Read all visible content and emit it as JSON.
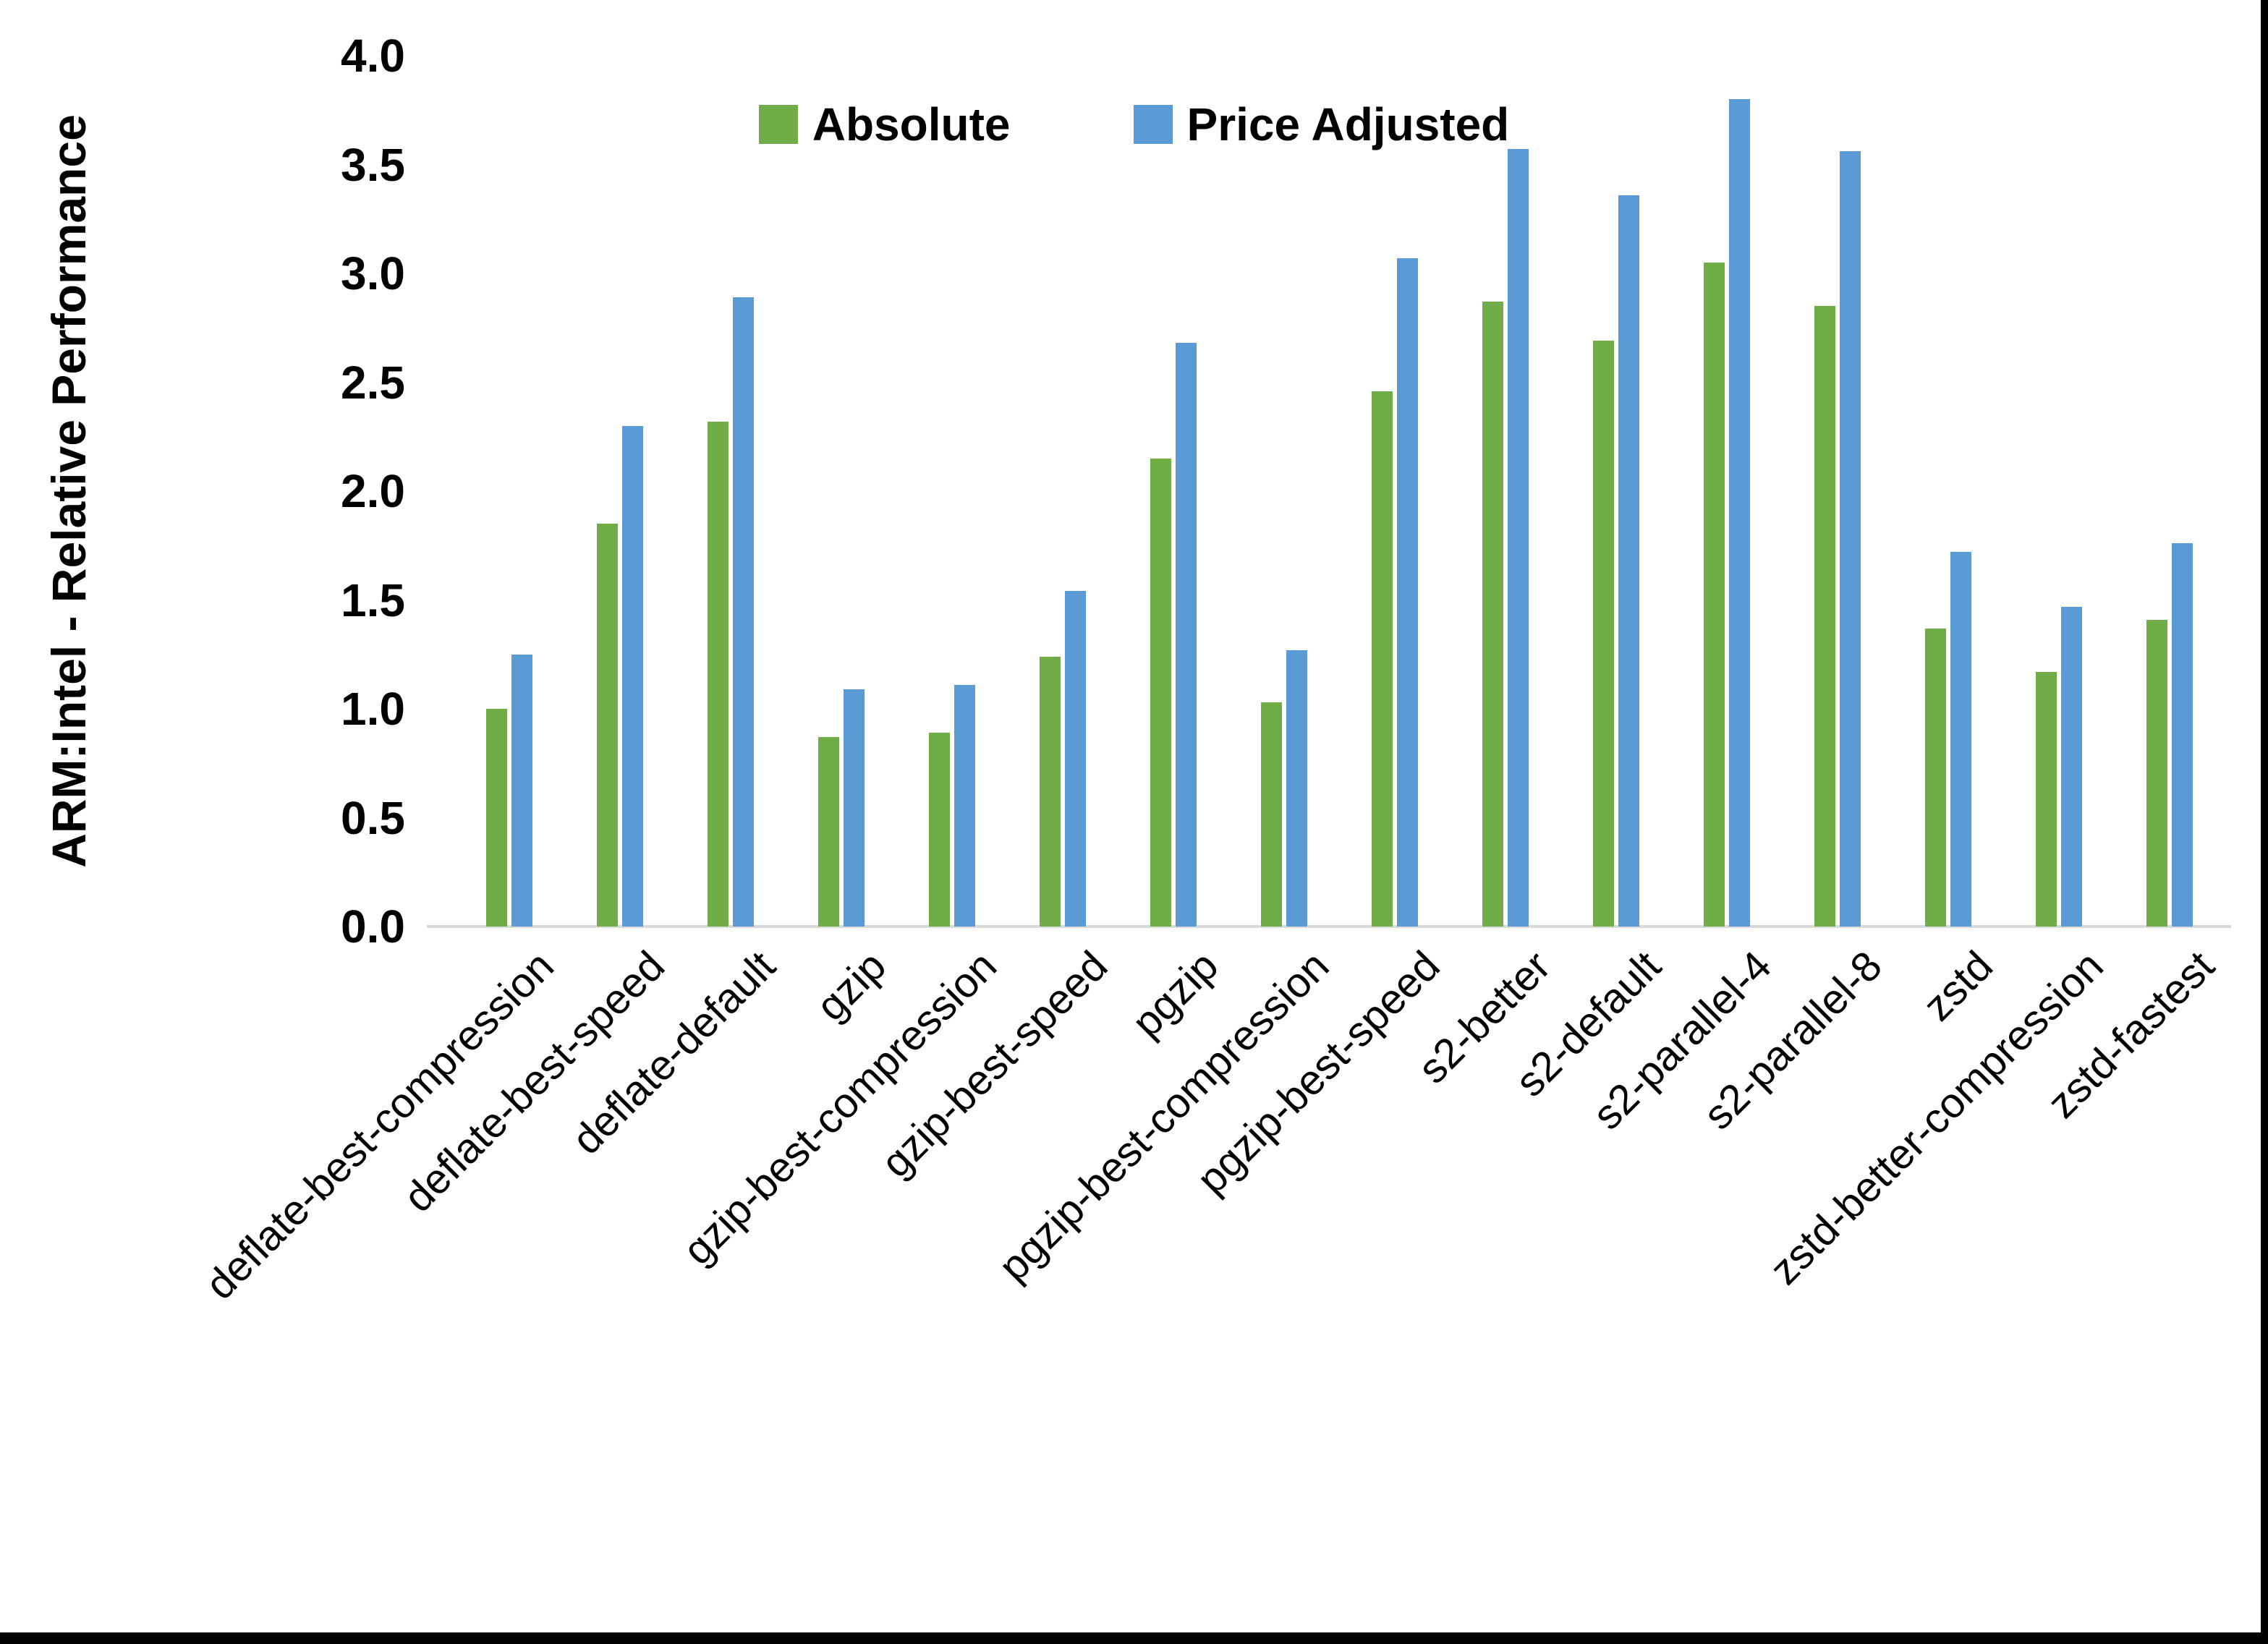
{
  "figure": {
    "y_ticks": [
      "4.0",
      "3.5",
      "3.0",
      "2.5",
      "2.0",
      "1.5",
      "1.0",
      "0.5",
      "0.0"
    ]
  },
  "legend": {
    "items": [
      {
        "label": "Absolute",
        "color": "#70AD47"
      },
      {
        "label": "Price Adjusted",
        "color": "#5B9BD5"
      }
    ]
  },
  "colors": {
    "absolute_green": "#70AD47",
    "price_adjusted_blue": "#5B9BD5",
    "axis_line_gray": "#D9D9D9",
    "border_black": "#000000"
  },
  "chart_data": {
    "type": "bar",
    "title": "",
    "xlabel": "",
    "ylabel": "ARM:Intel - Relative Performance",
    "ylim": [
      0.0,
      4.0
    ],
    "y_tick_step": 0.5,
    "grid": false,
    "legend_position": "top-center",
    "categories": [
      "deflate-best-compression",
      "deflate-best-speed",
      "deflate-default",
      "gzip",
      "gzip-best-compression",
      "gzip-best-speed",
      "pgzip",
      "pgzip-best-compression",
      "pgzip-best-speed",
      "s2-better",
      "s2-default",
      "s2-parallel-4",
      "s2-parallel-8",
      "zstd",
      "zstd-better-compression",
      "zstd-fastest"
    ],
    "series": [
      {
        "name": "Absolute",
        "color": "#70AD47",
        "values": [
          1.0,
          1.85,
          2.32,
          0.87,
          0.89,
          1.24,
          2.15,
          1.03,
          2.46,
          2.87,
          2.69,
          3.05,
          2.85,
          1.37,
          1.17,
          1.41
        ]
      },
      {
        "name": "Price Adjusted",
        "color": "#5B9BD5",
        "values": [
          1.25,
          2.3,
          2.89,
          1.09,
          1.11,
          1.54,
          2.68,
          1.27,
          3.07,
          3.57,
          3.36,
          3.8,
          3.56,
          1.72,
          1.47,
          1.76
        ]
      }
    ]
  }
}
